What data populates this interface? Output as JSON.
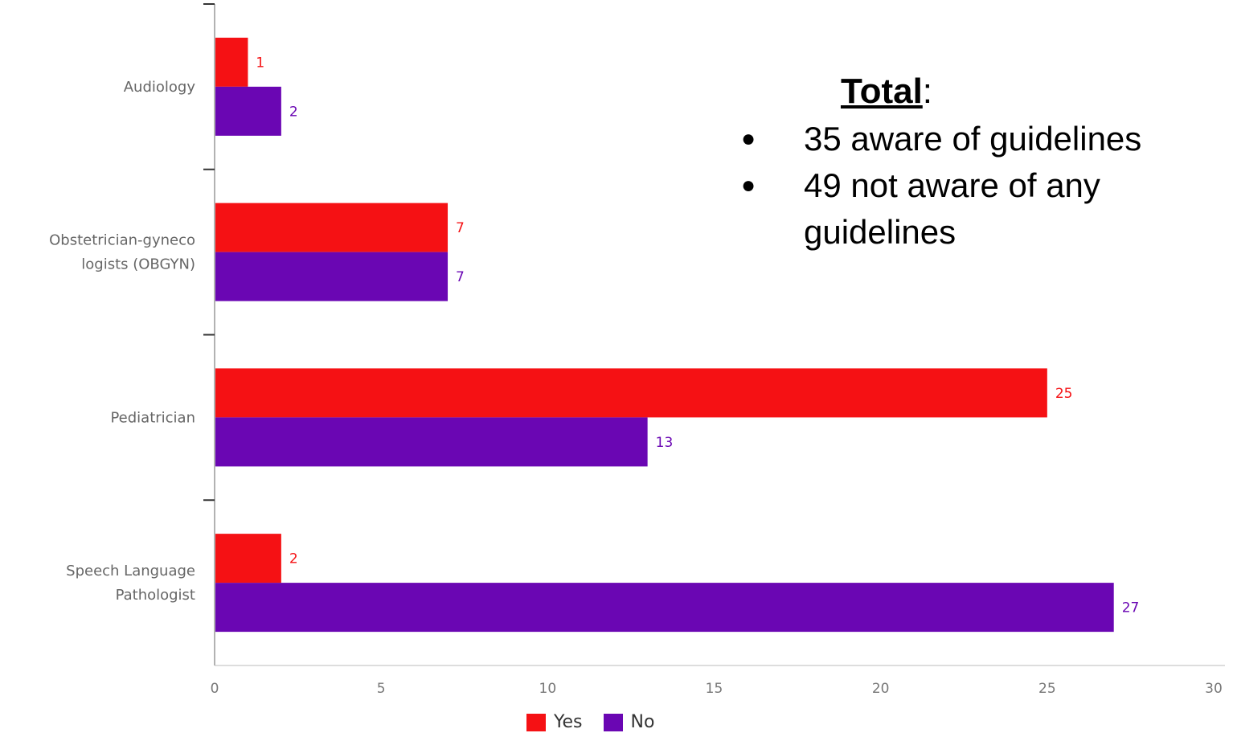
{
  "chart_data": {
    "type": "bar",
    "orientation": "horizontal",
    "categories": [
      "Audiology",
      "Obstetrician-gyneco logists (OBGYN)",
      "Pediatrician",
      "Speech Language Pathologist"
    ],
    "category_lines": [
      [
        "Audiology"
      ],
      [
        "Obstetrician-gyneco",
        "logists (OBGYN)"
      ],
      [
        "Pediatrician"
      ],
      [
        "Speech Language",
        "Pathologist"
      ]
    ],
    "series": [
      {
        "name": "Yes",
        "color": "#f51114",
        "values": [
          1,
          7,
          25,
          2
        ]
      },
      {
        "name": "No",
        "color": "#6a06b3",
        "values": [
          2,
          7,
          13,
          27
        ]
      }
    ],
    "xlim": [
      0,
      30
    ],
    "xticks": [
      "0",
      "5",
      "10",
      "15",
      "20",
      "25",
      "30"
    ],
    "legend_position": "bottom"
  },
  "annotation": {
    "title": "Total",
    "title_suffix": ":",
    "items": [
      "35 aware of guidelines",
      "49 not aware of any guidelines"
    ],
    "bullet": "●"
  }
}
